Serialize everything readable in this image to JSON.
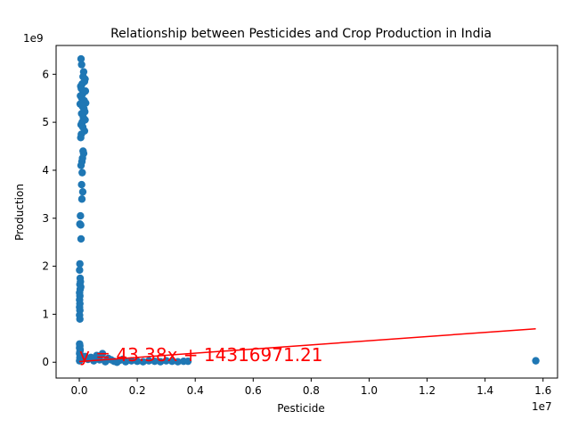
{
  "chart_data": {
    "type": "scatter",
    "title": "Relationship between Pesticides and Crop Production in India",
    "xlabel": "Pesticide",
    "ylabel": "Production",
    "x_offset_label": "1e7",
    "y_offset_label": "1e9",
    "xlim": [
      -0.08,
      1.65
    ],
    "ylim": [
      -0.33,
      6.6
    ],
    "x_ticks": [
      0.0,
      0.2,
      0.4,
      0.6,
      0.8,
      1.0,
      1.2,
      1.4,
      1.6
    ],
    "x_tick_labels": [
      "0.0",
      "0.2",
      "0.4",
      "0.6",
      "0.8",
      "1.0",
      "1.2",
      "1.4",
      "1.6"
    ],
    "y_ticks": [
      0,
      1,
      2,
      3,
      4,
      5,
      6
    ],
    "y_tick_labels": [
      "0",
      "1",
      "2",
      "3",
      "4",
      "5",
      "6"
    ],
    "point_color": "#1f77b4",
    "line_color": "#ff0000",
    "grid": false,
    "series": [
      {
        "points": [
          [
            0.006,
            6.32
          ],
          [
            0.008,
            6.2
          ],
          [
            0.015,
            6.05
          ],
          [
            0.013,
            5.95
          ],
          [
            0.02,
            5.9
          ],
          [
            0.018,
            5.85
          ],
          [
            0.01,
            5.8
          ],
          [
            0.005,
            5.75
          ],
          [
            0.007,
            5.7
          ],
          [
            0.021,
            5.65
          ],
          [
            0.012,
            5.6
          ],
          [
            0.004,
            5.55
          ],
          [
            0.009,
            5.5
          ],
          [
            0.017,
            5.45
          ],
          [
            0.022,
            5.4
          ],
          [
            0.003,
            5.38
          ],
          [
            0.011,
            5.33
          ],
          [
            0.016,
            5.28
          ],
          [
            0.019,
            5.22
          ],
          [
            0.008,
            5.18
          ],
          [
            0.014,
            5.1
          ],
          [
            0.02,
            5.05
          ],
          [
            0.01,
            5.0
          ],
          [
            0.006,
            4.95
          ],
          [
            0.012,
            4.9
          ],
          [
            0.018,
            4.82
          ],
          [
            0.007,
            4.75
          ],
          [
            0.005,
            4.68
          ],
          [
            0.013,
            4.4
          ],
          [
            0.015,
            4.35
          ],
          [
            0.011,
            4.25
          ],
          [
            0.009,
            4.18
          ],
          [
            0.006,
            4.1
          ],
          [
            0.01,
            3.95
          ],
          [
            0.008,
            3.7
          ],
          [
            0.012,
            3.55
          ],
          [
            0.009,
            3.4
          ],
          [
            0.004,
            3.05
          ],
          [
            0.002,
            2.88
          ],
          [
            0.005,
            2.86
          ],
          [
            0.006,
            2.57
          ],
          [
            0.002,
            2.05
          ],
          [
            0.001,
            1.92
          ],
          [
            0.003,
            1.75
          ],
          [
            0.004,
            1.68
          ],
          [
            0.002,
            1.62
          ],
          [
            0.005,
            1.57
          ],
          [
            0.003,
            1.52
          ],
          [
            0.001,
            1.45
          ],
          [
            0.002,
            1.38
          ],
          [
            0.001,
            1.3
          ],
          [
            0.002,
            1.22
          ],
          [
            0.001,
            1.15
          ],
          [
            0.002,
            1.08
          ],
          [
            0.001,
            0.98
          ],
          [
            0.002,
            0.9
          ],
          [
            0.001,
            0.38
          ],
          [
            0.002,
            0.34
          ],
          [
            0.001,
            0.3
          ],
          [
            0.003,
            0.26
          ],
          [
            0.002,
            0.22
          ],
          [
            0.001,
            0.18
          ],
          [
            0.004,
            0.14
          ],
          [
            0.002,
            0.1
          ],
          [
            0.003,
            0.06
          ],
          [
            0.001,
            0.03
          ],
          [
            0.02,
            0.12
          ],
          [
            0.04,
            0.1
          ],
          [
            0.06,
            0.14
          ],
          [
            0.08,
            0.18
          ],
          [
            0.07,
            0.05
          ],
          [
            0.1,
            0.08
          ],
          [
            0.12,
            0.02
          ],
          [
            0.14,
            0.04
          ],
          [
            0.16,
            0.01
          ],
          [
            0.18,
            0.03
          ],
          [
            0.2,
            0.02
          ],
          [
            0.22,
            0.01
          ],
          [
            0.24,
            0.03
          ],
          [
            0.26,
            0.02
          ],
          [
            0.28,
            0.01
          ],
          [
            0.3,
            0.03
          ],
          [
            0.32,
            0.02
          ],
          [
            0.34,
            0.01
          ],
          [
            0.36,
            0.02
          ],
          [
            0.375,
            0.02
          ],
          [
            0.05,
            0.03
          ],
          [
            0.09,
            0.01
          ],
          [
            0.11,
            0.05
          ],
          [
            0.13,
            0.0
          ],
          [
            0.15,
            0.06
          ],
          [
            0.03,
            0.06
          ],
          [
            1.575,
            0.03
          ]
        ]
      }
    ],
    "fit_line": {
      "slope": 43.38,
      "intercept": 14316971.21,
      "x_range": [
        0.0,
        1.575
      ]
    },
    "annotation": {
      "text": "y = 43.38x + 14316971.21",
      "x": 0.0,
      "y": 0.0
    }
  }
}
